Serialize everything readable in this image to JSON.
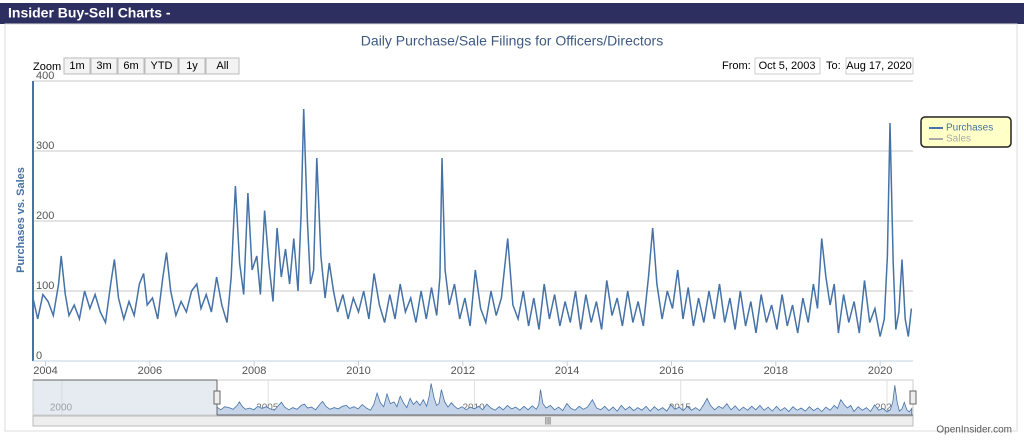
{
  "header": {
    "title": "Insider Buy-Sell Charts -"
  },
  "footer": {
    "credit": "OpenInsider.com"
  },
  "controls": {
    "zoom_label": "Zoom",
    "zoom_buttons": [
      "1m",
      "3m",
      "6m",
      "YTD",
      "1y",
      "All"
    ],
    "from_label": "From:",
    "from_value": "Oct 5, 2003",
    "to_label": "To:",
    "to_value": "Aug 17, 2020"
  },
  "chart_data": {
    "type": "line",
    "title": "Daily Purchase/Sale Filings for Officers/Directors",
    "ylabel": "Purchases vs. Sales",
    "ylim": [
      0,
      400
    ],
    "yticks": [
      0,
      100,
      200,
      300,
      400
    ],
    "grid": true,
    "xlim": [
      2003.76,
      2020.63
    ],
    "xticks": [
      2004,
      2006,
      2008,
      2010,
      2012,
      2014,
      2016,
      2018,
      2020
    ],
    "navigator": {
      "xlim": [
        1999.3,
        2020.63
      ],
      "xticks": [
        2000,
        2005,
        2010,
        2015,
        2020
      ]
    },
    "legend": {
      "position": "right",
      "hidden_items": [
        "Sales"
      ],
      "hidden_color": "#aaaaaa"
    },
    "x": [
      2003.76,
      2003.85,
      2003.95,
      2004.05,
      2004.15,
      2004.25,
      2004.3,
      2004.38,
      2004.45,
      2004.55,
      2004.65,
      2004.75,
      2004.85,
      2004.95,
      2005.05,
      2005.15,
      2005.25,
      2005.32,
      2005.4,
      2005.5,
      2005.6,
      2005.7,
      2005.8,
      2005.88,
      2005.95,
      2006.05,
      2006.15,
      2006.25,
      2006.32,
      2006.4,
      2006.5,
      2006.6,
      2006.7,
      2006.8,
      2006.9,
      2006.98,
      2007.08,
      2007.18,
      2007.28,
      2007.38,
      2007.48,
      2007.56,
      2007.64,
      2007.72,
      2007.8,
      2007.88,
      2007.96,
      2008.05,
      2008.12,
      2008.2,
      2008.28,
      2008.36,
      2008.44,
      2008.52,
      2008.6,
      2008.68,
      2008.76,
      2008.84,
      2008.9,
      2008.95,
      2009.02,
      2009.08,
      2009.14,
      2009.2,
      2009.28,
      2009.36,
      2009.44,
      2009.52,
      2009.6,
      2009.7,
      2009.8,
      2009.9,
      2010.0,
      2010.1,
      2010.2,
      2010.3,
      2010.4,
      2010.5,
      2010.6,
      2010.7,
      2010.8,
      2010.9,
      2011.0,
      2011.1,
      2011.2,
      2011.3,
      2011.4,
      2011.5,
      2011.56,
      2011.6,
      2011.66,
      2011.74,
      2011.84,
      2011.94,
      2012.04,
      2012.14,
      2012.24,
      2012.34,
      2012.44,
      2012.54,
      2012.64,
      2012.74,
      2012.86,
      2012.96,
      2013.06,
      2013.16,
      2013.26,
      2013.36,
      2013.46,
      2013.56,
      2013.66,
      2013.76,
      2013.86,
      2013.96,
      2014.06,
      2014.16,
      2014.26,
      2014.36,
      2014.46,
      2014.56,
      2014.66,
      2014.76,
      2014.86,
      2014.96,
      2015.06,
      2015.16,
      2015.26,
      2015.36,
      2015.46,
      2015.56,
      2015.64,
      2015.72,
      2015.82,
      2015.92,
      2016.02,
      2016.12,
      2016.22,
      2016.32,
      2016.42,
      2016.52,
      2016.62,
      2016.72,
      2016.82,
      2016.92,
      2017.02,
      2017.12,
      2017.22,
      2017.32,
      2017.42,
      2017.52,
      2017.62,
      2017.72,
      2017.82,
      2017.92,
      2018.02,
      2018.12,
      2018.22,
      2018.32,
      2018.42,
      2018.52,
      2018.62,
      2018.72,
      2018.8,
      2018.88,
      2018.96,
      2019.04,
      2019.12,
      2019.2,
      2019.3,
      2019.4,
      2019.5,
      2019.6,
      2019.7,
      2019.8,
      2019.9,
      2020.0,
      2020.08,
      2020.14,
      2020.19,
      2020.25,
      2020.3,
      2020.36,
      2020.42,
      2020.48,
      2020.54,
      2020.6
    ],
    "series": [
      {
        "name": "Purchases",
        "color": "#4572a7",
        "values": [
          90,
          60,
          95,
          85,
          65,
          110,
          150,
          95,
          65,
          80,
          60,
          100,
          75,
          95,
          70,
          55,
          110,
          145,
          90,
          60,
          85,
          65,
          110,
          125,
          80,
          90,
          60,
          120,
          155,
          100,
          65,
          85,
          70,
          100,
          110,
          75,
          95,
          70,
          120,
          80,
          55,
          120,
          250,
          140,
          95,
          240,
          130,
          150,
          95,
          215,
          140,
          85,
          190,
          120,
          160,
          110,
          175,
          100,
          210,
          360,
          200,
          110,
          130,
          290,
          150,
          90,
          140,
          100,
          70,
          95,
          60,
          90,
          70,
          100,
          60,
          125,
          80,
          55,
          95,
          60,
          110,
          70,
          90,
          55,
          100,
          60,
          105,
          65,
          120,
          290,
          130,
          80,
          110,
          60,
          90,
          50,
          130,
          75,
          55,
          100,
          65,
          90,
          175,
          80,
          60,
          100,
          50,
          90,
          45,
          110,
          60,
          95,
          50,
          85,
          55,
          100,
          45,
          95,
          55,
          85,
          45,
          115,
          65,
          90,
          50,
          100,
          55,
          85,
          50,
          120,
          190,
          110,
          60,
          100,
          75,
          130,
          60,
          105,
          50,
          90,
          55,
          100,
          60,
          110,
          55,
          90,
          45,
          100,
          50,
          85,
          40,
          95,
          55,
          80,
          45,
          95,
          50,
          80,
          40,
          90,
          55,
          110,
          75,
          175,
          120,
          80,
          110,
          40,
          95,
          55,
          85,
          40,
          115,
          55,
          75,
          35,
          60,
          150,
          340,
          140,
          45,
          70,
          145,
          60,
          35,
          75
        ]
      }
    ]
  }
}
